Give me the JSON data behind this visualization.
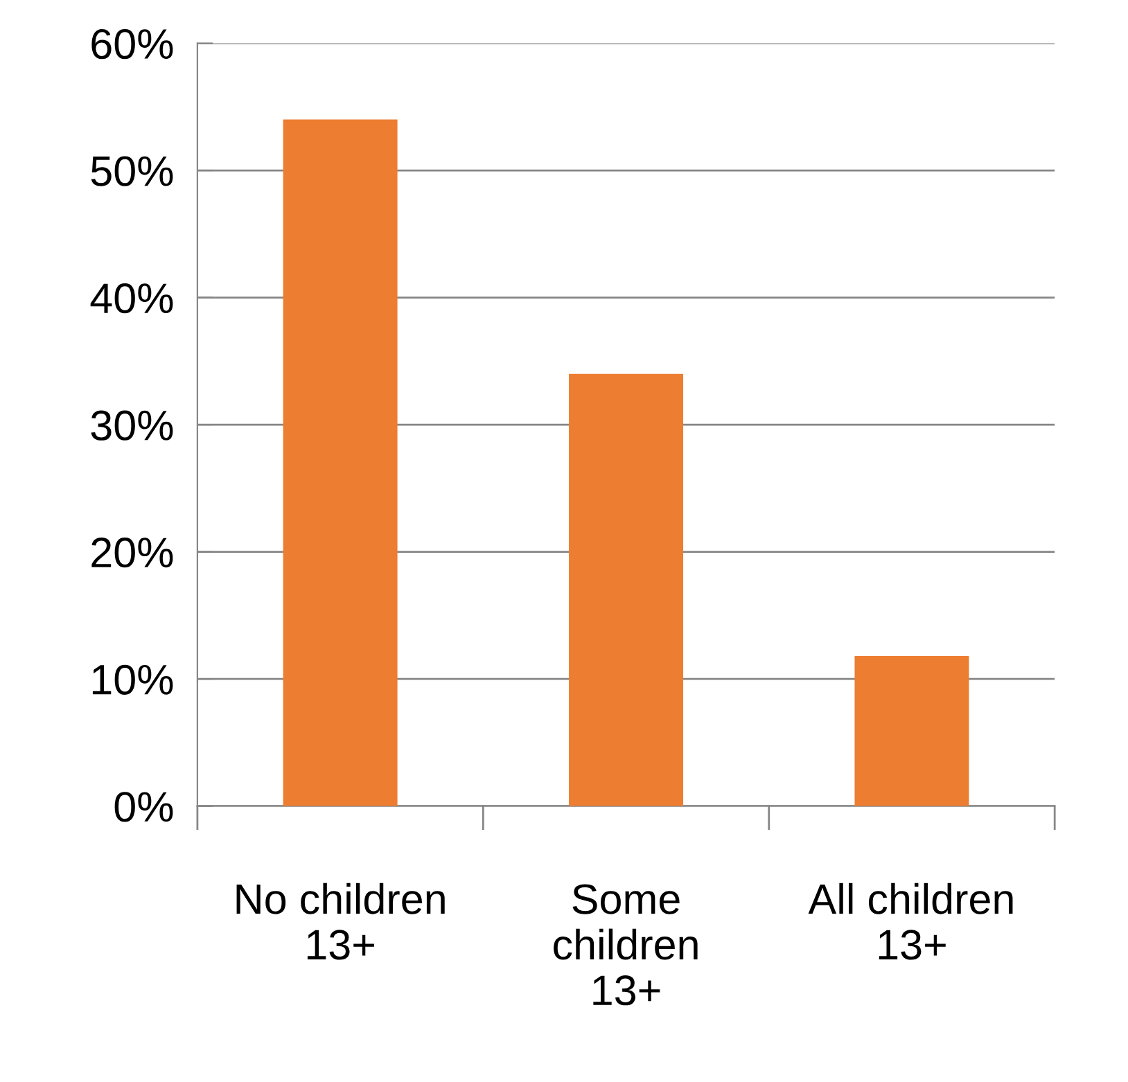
{
  "chart_data": {
    "type": "bar",
    "categories": [
      "No children\n13+",
      "Some\nchildren\n13+",
      "All children\n13+"
    ],
    "values": [
      54,
      34,
      11.8
    ],
    "color": "#ed7d31",
    "ylim": [
      0,
      60
    ],
    "yticks": [
      {
        "value": 0,
        "label": "0%"
      },
      {
        "value": 10,
        "label": "10%"
      },
      {
        "value": 20,
        "label": "20%"
      },
      {
        "value": 30,
        "label": "30%"
      },
      {
        "value": 40,
        "label": "40%"
      },
      {
        "value": 50,
        "label": "50%"
      },
      {
        "value": 60,
        "label": "60%"
      }
    ],
    "grid": "y",
    "legend": false
  }
}
